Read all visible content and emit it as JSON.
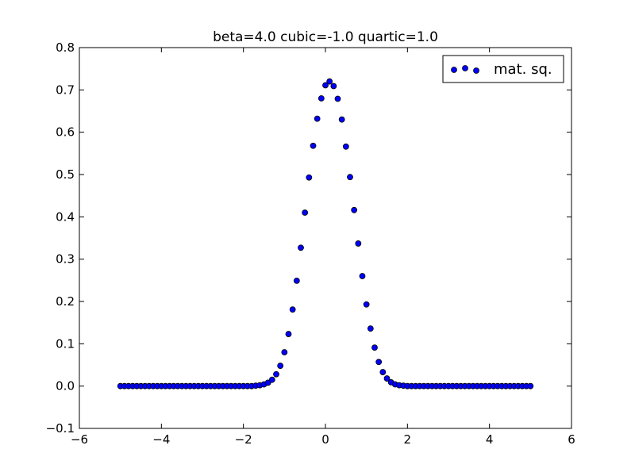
{
  "chart_data": {
    "type": "scatter",
    "title": "beta=4.0   cubic=-1.0    quartic=1.0",
    "xlabel": "",
    "ylabel": "",
    "xlim": [
      -6,
      6
    ],
    "ylim": [
      -0.1,
      0.8
    ],
    "x_ticks": [
      -6,
      -4,
      -2,
      0,
      2,
      4,
      6
    ],
    "x_tick_labels": [
      "−6",
      "−4",
      "−2",
      "0",
      "2",
      "4",
      "6"
    ],
    "y_ticks": [
      -0.1,
      0.0,
      0.1,
      0.2,
      0.3,
      0.4,
      0.5,
      0.6,
      0.7,
      0.8
    ],
    "y_tick_labels": [
      "−0.1",
      "0.0",
      "0.1",
      "0.2",
      "0.3",
      "0.4",
      "0.5",
      "0.6",
      "0.7",
      "0.8"
    ],
    "grid": false,
    "legend_position": "top-right",
    "series": [
      {
        "name": "mat. sq.",
        "marker": "circle",
        "color": "#0000ff",
        "edge_color": "#000000",
        "x": [
          -5.0,
          -4.9,
          -4.8,
          -4.7,
          -4.6,
          -4.5,
          -4.4,
          -4.3,
          -4.2,
          -4.1,
          -4.0,
          -3.9,
          -3.8,
          -3.7,
          -3.6,
          -3.5,
          -3.4,
          -3.3,
          -3.2,
          -3.1,
          -3.0,
          -2.9,
          -2.8,
          -2.7,
          -2.6,
          -2.5,
          -2.4,
          -2.3,
          -2.2,
          -2.1,
          -2.0,
          -1.9,
          -1.8,
          -1.7,
          -1.6,
          -1.5,
          -1.4,
          -1.3,
          -1.2,
          -1.1,
          -1.0,
          -0.9,
          -0.8,
          -0.7,
          -0.6,
          -0.5,
          -0.4,
          -0.3,
          -0.2,
          -0.1,
          0.0,
          0.1,
          0.2,
          0.3,
          0.4,
          0.5,
          0.6,
          0.7,
          0.8,
          0.9,
          1.0,
          1.1,
          1.2,
          1.3,
          1.4,
          1.5,
          1.6,
          1.7,
          1.8,
          1.9,
          2.0,
          2.1,
          2.2,
          2.3,
          2.4,
          2.5,
          2.6,
          2.7,
          2.8,
          2.9,
          3.0,
          3.1,
          3.2,
          3.3,
          3.4,
          3.5,
          3.6,
          3.7,
          3.8,
          3.9,
          4.0,
          4.1,
          4.2,
          4.3,
          4.4,
          4.5,
          4.6,
          4.7,
          4.8,
          4.9,
          5.0
        ],
        "y": [
          0.0,
          0.0,
          0.0,
          0.0,
          0.0,
          0.0,
          0.0,
          0.0,
          0.0,
          0.0,
          0.0,
          0.0,
          0.0,
          0.0,
          0.0,
          0.0,
          0.0,
          0.0,
          0.0,
          0.0,
          0.0,
          0.0,
          0.0,
          0.0,
          0.0,
          0.0,
          0.0,
          0.0,
          0.0,
          0.0,
          0.0,
          0.0,
          0.0,
          0.001,
          0.002,
          0.004,
          0.008,
          0.015,
          0.028,
          0.048,
          0.08,
          0.123,
          0.181,
          0.249,
          0.327,
          0.41,
          0.493,
          0.568,
          0.632,
          0.68,
          0.711,
          0.72,
          0.709,
          0.679,
          0.63,
          0.566,
          0.494,
          0.416,
          0.337,
          0.26,
          0.193,
          0.136,
          0.091,
          0.057,
          0.033,
          0.018,
          0.009,
          0.004,
          0.002,
          0.001,
          0.0,
          0.0,
          0.0,
          0.0,
          0.0,
          0.0,
          0.0,
          0.0,
          0.0,
          0.0,
          0.0,
          0.0,
          0.0,
          0.0,
          0.0,
          0.0,
          0.0,
          0.0,
          0.0,
          0.0,
          0.0,
          0.0,
          0.0,
          0.0,
          0.0,
          0.0,
          0.0,
          0.0,
          0.0,
          0.0,
          0.0
        ]
      }
    ]
  }
}
